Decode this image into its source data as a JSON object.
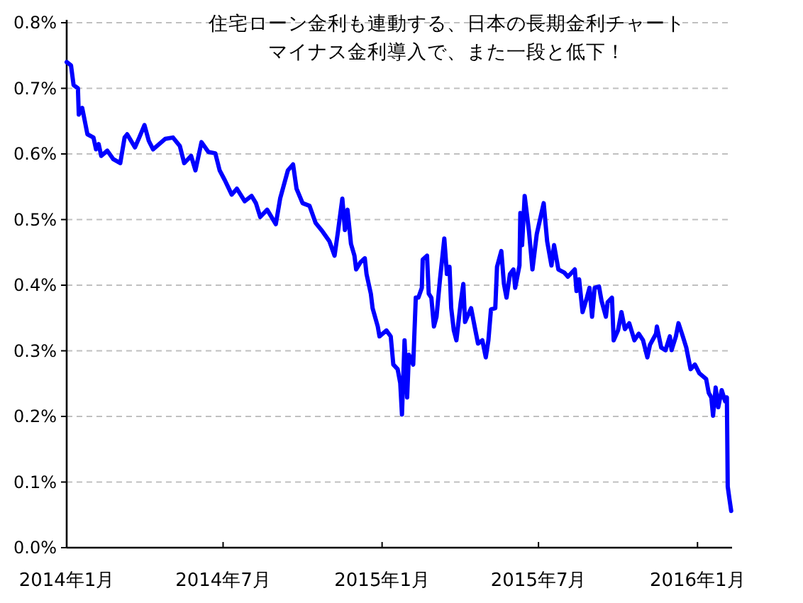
{
  "chart_data": {
    "type": "line",
    "title": "住宅ローン金利も連動する、日本の長期金利チャート",
    "subtitle": "マイナス金利導入で、また一段と低下！",
    "x": [
      "2014-01-01",
      "2014-01-06",
      "2014-01-09",
      "2014-01-14",
      "2014-01-15",
      "2014-01-19",
      "2014-01-22",
      "2014-01-25",
      "2014-02-01",
      "2014-02-04",
      "2014-02-07",
      "2014-02-10",
      "2014-02-17",
      "2014-02-24",
      "2014-03-04",
      "2014-03-09",
      "2014-03-12",
      "2014-03-21",
      "2014-03-26",
      "2014-04-01",
      "2014-04-06",
      "2014-04-11",
      "2014-04-25",
      "2014-05-04",
      "2014-05-12",
      "2014-05-17",
      "2014-05-25",
      "2014-05-30",
      "2014-06-06",
      "2014-06-14",
      "2014-06-22",
      "2014-06-27",
      "2014-07-03",
      "2014-07-11",
      "2014-07-17",
      "2014-07-26",
      "2014-08-03",
      "2014-08-08",
      "2014-08-13",
      "2014-08-21",
      "2014-08-31",
      "2014-09-05",
      "2014-09-14",
      "2014-09-20",
      "2014-09-24",
      "2014-10-01",
      "2014-10-09",
      "2014-10-16",
      "2014-10-24",
      "2014-11-01",
      "2014-11-07",
      "2014-11-11",
      "2014-11-16",
      "2014-11-19",
      "2014-11-22",
      "2014-11-26",
      "2014-11-30",
      "2014-12-02",
      "2014-12-07",
      "2014-12-12",
      "2014-12-14",
      "2014-12-19",
      "2014-12-21",
      "2014-12-27",
      "2014-12-29",
      "2015-01-06",
      "2015-01-11",
      "2015-01-14",
      "2015-01-19",
      "2015-01-22",
      "2015-01-24",
      "2015-01-27",
      "2015-01-30",
      "2015-02-01",
      "2015-02-06",
      "2015-02-09",
      "2015-02-12",
      "2015-02-16",
      "2015-02-17",
      "2015-02-22",
      "2015-02-24",
      "2015-02-27",
      "2015-03-02",
      "2015-03-05",
      "2015-03-09",
      "2015-03-14",
      "2015-03-17",
      "2015-03-20",
      "2015-03-22",
      "2015-03-25",
      "2015-03-28",
      "2015-04-02",
      "2015-04-05",
      "2015-04-07",
      "2015-04-14",
      "2015-04-19",
      "2015-04-22",
      "2015-04-27",
      "2015-05-01",
      "2015-05-04",
      "2015-05-07",
      "2015-05-12",
      "2015-05-14",
      "2015-05-19",
      "2015-05-22",
      "2015-05-25",
      "2015-05-29",
      "2015-06-02",
      "2015-06-04",
      "2015-06-09",
      "2015-06-10",
      "2015-06-12",
      "2015-06-15",
      "2015-06-20",
      "2015-06-24",
      "2015-06-29",
      "2015-07-07",
      "2015-07-11",
      "2015-07-16",
      "2015-07-19",
      "2015-07-24",
      "2015-07-31",
      "2015-08-04",
      "2015-08-12",
      "2015-08-14",
      "2015-08-17",
      "2015-08-21",
      "2015-08-26",
      "2015-08-29",
      "2015-09-01",
      "2015-09-04",
      "2015-09-09",
      "2015-09-12",
      "2015-09-17",
      "2015-09-19",
      "2015-09-24",
      "2015-09-26",
      "2015-10-01",
      "2015-10-05",
      "2015-10-09",
      "2015-10-14",
      "2015-10-20",
      "2015-10-25",
      "2015-10-30",
      "2015-11-04",
      "2015-11-07",
      "2015-11-14",
      "2015-11-15",
      "2015-11-20",
      "2015-11-25",
      "2015-11-30",
      "2015-12-02",
      "2015-12-07",
      "2015-12-10",
      "2015-12-15",
      "2015-12-19",
      "2015-12-24",
      "2015-12-29",
      "2016-01-03",
      "2016-01-11",
      "2016-01-14",
      "2016-01-17",
      "2016-01-19",
      "2016-01-22",
      "2016-01-25",
      "2016-01-29",
      "2016-02-02",
      "2016-02-04",
      "2016-02-05",
      "2016-02-07",
      "2016-02-09"
    ],
    "series": [
      {
        "color": "#0000ff",
        "values": [
          0.74,
          0.735,
          0.705,
          0.7,
          0.66,
          0.67,
          0.65,
          0.63,
          0.625,
          0.607,
          0.615,
          0.597,
          0.605,
          0.592,
          0.586,
          0.625,
          0.63,
          0.61,
          0.625,
          0.644,
          0.62,
          0.607,
          0.623,
          0.625,
          0.612,
          0.586,
          0.597,
          0.575,
          0.618,
          0.603,
          0.601,
          0.575,
          0.56,
          0.538,
          0.547,
          0.528,
          0.536,
          0.525,
          0.504,
          0.515,
          0.493,
          0.532,
          0.575,
          0.584,
          0.547,
          0.525,
          0.521,
          0.495,
          0.482,
          0.467,
          0.445,
          0.482,
          0.532,
          0.484,
          0.515,
          0.463,
          0.445,
          0.424,
          0.435,
          0.441,
          0.417,
          0.387,
          0.365,
          0.337,
          0.322,
          0.331,
          0.322,
          0.279,
          0.272,
          0.251,
          0.203,
          0.316,
          0.229,
          0.294,
          0.279,
          0.381,
          0.381,
          0.396,
          0.439,
          0.445,
          0.387,
          0.381,
          0.337,
          0.352,
          0.409,
          0.471,
          0.417,
          0.428,
          0.365,
          0.331,
          0.316,
          0.374,
          0.402,
          0.344,
          0.365,
          0.331,
          0.311,
          0.316,
          0.29,
          0.316,
          0.363,
          0.365,
          0.428,
          0.452,
          0.402,
          0.381,
          0.417,
          0.424,
          0.396,
          0.43,
          0.51,
          0.461,
          0.536,
          0.482,
          0.424,
          0.478,
          0.525,
          0.467,
          0.43,
          0.461,
          0.424,
          0.419,
          0.413,
          0.424,
          0.391,
          0.409,
          0.359,
          0.381,
          0.396,
          0.352,
          0.396,
          0.398,
          0.376,
          0.352,
          0.374,
          0.381,
          0.316,
          0.331,
          0.359,
          0.333,
          0.342,
          0.316,
          0.326,
          0.316,
          0.29,
          0.309,
          0.326,
          0.337,
          0.305,
          0.301,
          0.322,
          0.301,
          0.322,
          0.342,
          0.322,
          0.305,
          0.272,
          0.279,
          0.266,
          0.257,
          0.236,
          0.229,
          0.201,
          0.244,
          0.214,
          0.24,
          0.223,
          0.229,
          0.093,
          0.074,
          0.056
        ]
      }
    ],
    "xlim": [
      "2014-01-01",
      "2016-02-10"
    ],
    "xticks": [
      {
        "value": "2014-01-01",
        "label": "2014年1月"
      },
      {
        "value": "2014-07-01",
        "label": "2014年7月"
      },
      {
        "value": "2015-01-01",
        "label": "2015年1月"
      },
      {
        "value": "2015-07-01",
        "label": "2015年7月"
      },
      {
        "value": "2016-01-01",
        "label": "2016年1月"
      }
    ],
    "ylim": [
      0,
      0.8
    ],
    "yticks": [
      {
        "value": 0,
        "label": "0.0%"
      },
      {
        "value": 0.1,
        "label": "0.1%"
      },
      {
        "value": 0.2,
        "label": "0.2%"
      },
      {
        "value": 0.3,
        "label": "0.3%"
      },
      {
        "value": 0.4,
        "label": "0.4%"
      },
      {
        "value": 0.5,
        "label": "0.5%"
      },
      {
        "value": 0.6,
        "label": "0.6%"
      },
      {
        "value": 0.7,
        "label": "0.7%"
      },
      {
        "value": 0.8,
        "label": "0.8%"
      }
    ],
    "grid": "y",
    "marker": "none",
    "line_style": "solid"
  }
}
